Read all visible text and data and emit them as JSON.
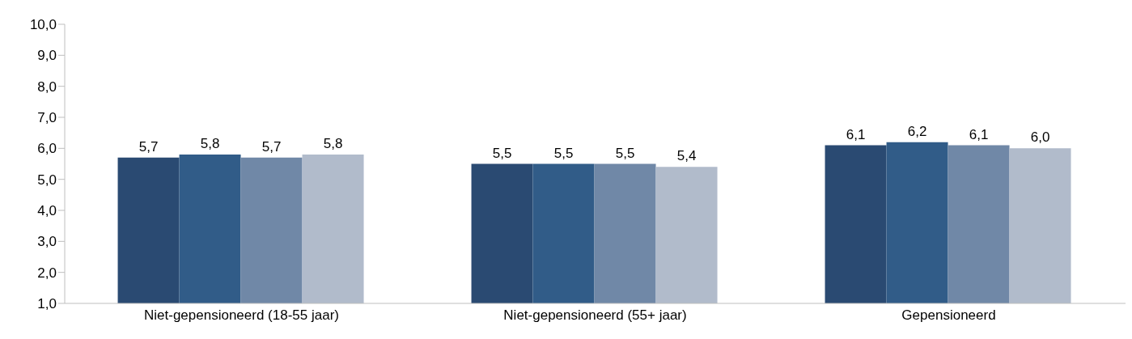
{
  "chart_data": {
    "type": "bar",
    "categories": [
      "Niet-gepensioneerd (18-55 jaar)",
      "Niet-gepensioneerd (55+ jaar)",
      "Gepensioneerd"
    ],
    "series": [
      {
        "color": "#2a4a72",
        "values": [
          5.7,
          5.5,
          6.1
        ],
        "value_labels": [
          "5,7",
          "5,5",
          "6,1"
        ]
      },
      {
        "color": "#315c88",
        "values": [
          5.8,
          5.5,
          6.2
        ],
        "value_labels": [
          "5,8",
          "5,5",
          "6,2"
        ]
      },
      {
        "color": "#7088a7",
        "values": [
          5.7,
          5.5,
          6.1
        ],
        "value_labels": [
          "5,7",
          "5,5",
          "6,1"
        ]
      },
      {
        "color": "#b1bbcb",
        "values": [
          5.8,
          5.4,
          6.0
        ],
        "value_labels": [
          "5,8",
          "5,4",
          "6,0"
        ]
      }
    ],
    "ylim": [
      1,
      10
    ],
    "yticks": [
      {
        "value": 1,
        "label": "1,0"
      },
      {
        "value": 2,
        "label": "2,0"
      },
      {
        "value": 3,
        "label": "3,0"
      },
      {
        "value": 4,
        "label": "4,0"
      },
      {
        "value": 5,
        "label": "5,0"
      },
      {
        "value": 6,
        "label": "6,0"
      },
      {
        "value": 7,
        "label": "7,0"
      },
      {
        "value": 8,
        "label": "8,0"
      },
      {
        "value": 9,
        "label": "9,0"
      },
      {
        "value": 10,
        "label": "10,0"
      }
    ],
    "grid": false,
    "legend": false
  }
}
